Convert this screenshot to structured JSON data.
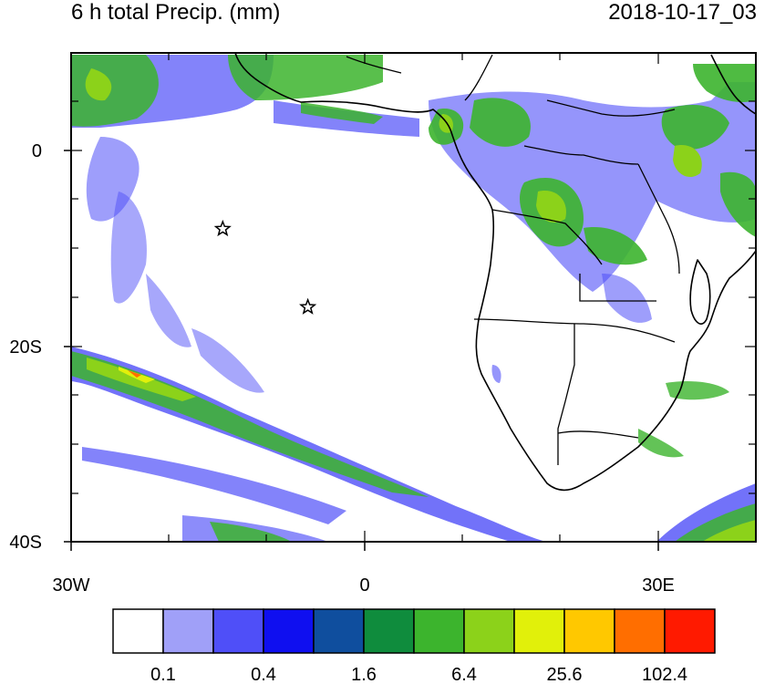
{
  "title": "6 h total Precip. (mm)",
  "timestamp": "2018-10-17_03",
  "axes": {
    "y_ticks": [
      "0",
      "20S",
      "40S"
    ],
    "x_ticks": [
      "30W",
      "0",
      "30E"
    ]
  },
  "colorbar": {
    "colors": [
      "#ffffff",
      "#a0a0f8",
      "#4f4ff8",
      "#0f0ff0",
      "#0f4e9e",
      "#0f8c3d",
      "#3cb42d",
      "#8cd21a",
      "#e1f00a",
      "#ffc800",
      "#ff6e00",
      "#ff1a00"
    ],
    "labels": [
      "0.1",
      "0.4",
      "1.6",
      "6.4",
      "25.6",
      "102.4"
    ]
  },
  "markers": [
    {
      "name": "station-star-1",
      "lon": -14.5,
      "lat": -8
    },
    {
      "name": "station-star-2",
      "lon": -5.8,
      "lat": -16
    }
  ]
}
